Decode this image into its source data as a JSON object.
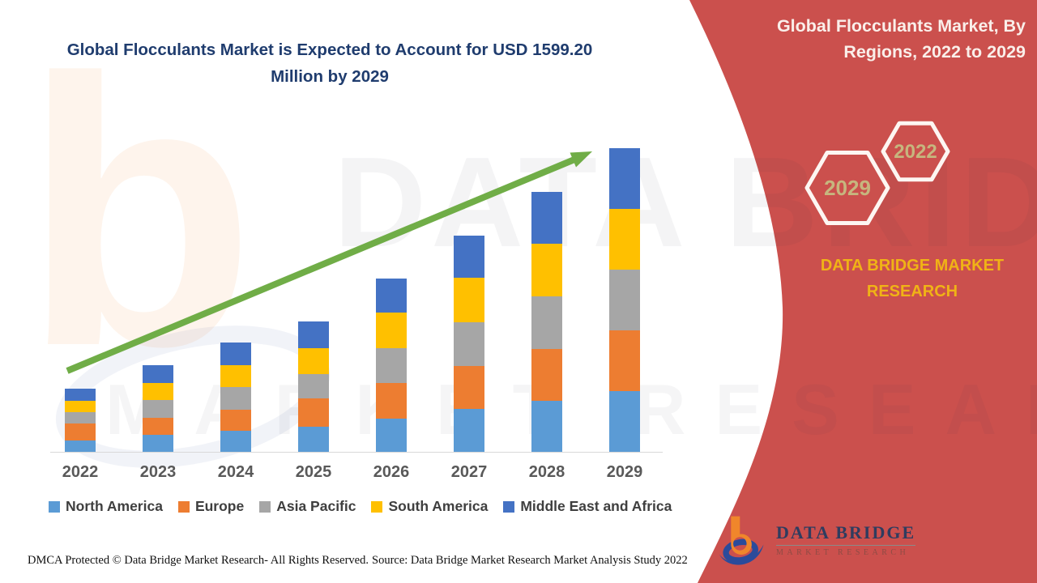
{
  "main_title": "Global Flocculants Market is Expected to Account for USD 1599.20 Million by 2029",
  "side_panel": {
    "title_line1": "Global Flocculants Market, By",
    "title_line2": "Regions, 2022 to 2029",
    "hexagon_large_label": "2029",
    "hexagon_small_label": "2022",
    "brand_line1": "DATA BRIDGE MARKET",
    "brand_line2": "RESEARCH",
    "background_color": "#CB504D",
    "brand_color": "#F0B316",
    "hexagon_label_color": "#C6B67E"
  },
  "chart_data": {
    "type": "bar",
    "stacked": true,
    "title": "Global Flocculants Market is Expected to Account for USD 1599.20 Million by 2029",
    "unit": "USD Million",
    "categories": [
      "2022",
      "2023",
      "2024",
      "2025",
      "2026",
      "2027",
      "2028",
      "2029"
    ],
    "series": [
      {
        "name": "North America",
        "color": "#5B9BD5",
        "values": [
          60,
          90,
          110,
          132,
          177,
          224,
          270,
          320
        ]
      },
      {
        "name": "Europe",
        "color": "#ED7D31",
        "values": [
          90,
          88,
          114,
          150,
          185,
          230,
          273,
          320
        ]
      },
      {
        "name": "Asia Pacific",
        "color": "#A6A6A6",
        "values": [
          60,
          93,
          116,
          128,
          185,
          229,
          274,
          320
        ]
      },
      {
        "name": "South America",
        "color": "#FFC000",
        "values": [
          60,
          92,
          116,
          137,
          185,
          235,
          277,
          320
        ]
      },
      {
        "name": "Middle East and Africa",
        "color": "#4472C4",
        "values": [
          64,
          94,
          118,
          139,
          182,
          219,
          273,
          319.2
        ]
      }
    ],
    "total_2029": 1599.2,
    "ylim": [
      0,
      1600
    ],
    "xlabel": "",
    "ylabel": "",
    "grid": false,
    "legend_position": "bottom",
    "annotation": "green upward trend arrow from 2022 to 2029"
  },
  "trend_arrow": {
    "color": "#70AD47"
  },
  "watermarks": {
    "line1": "DATA BRIDGE",
    "line2": "MARKET RESEARCH",
    "letter": "b"
  },
  "footer": {
    "left": "DMCA Protected © Data Bridge Market Research- All Rights Reserved.",
    "source": "Source: Data Bridge Market Research Market Analysis Study 2022"
  },
  "logo": {
    "title": "DATA BRIDGE",
    "subtitle": "MARKET RESEARCH"
  }
}
